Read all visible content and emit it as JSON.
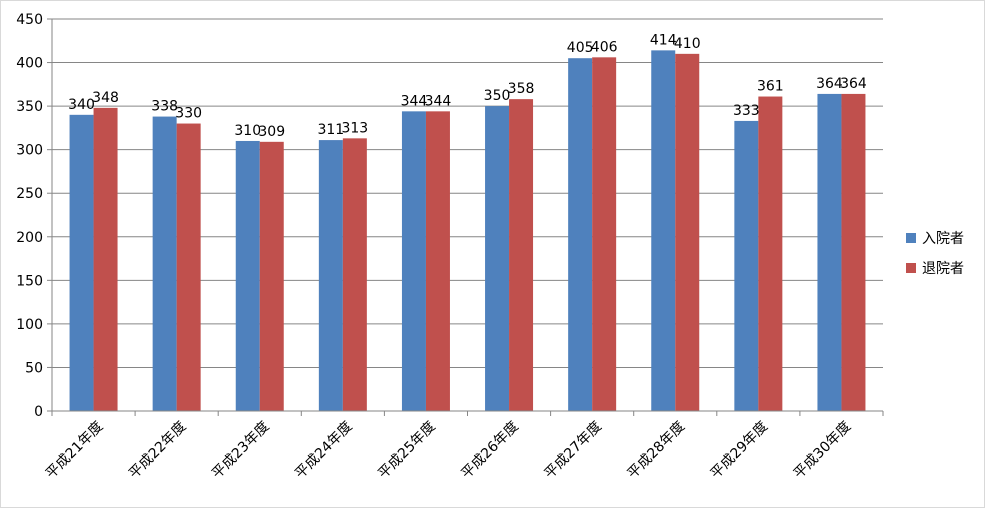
{
  "chart_data": {
    "type": "bar",
    "categories": [
      "平成21年度",
      "平成22年度",
      "平成23年度",
      "平成24年度",
      "平成25年度",
      "平成26年度",
      "平成27年度",
      "平成28年度",
      "平成29年度",
      "平成30年度"
    ],
    "series": [
      {
        "name": "入院者",
        "color": "#4F81BD",
        "values": [
          340,
          338,
          310,
          311,
          344,
          350,
          405,
          414,
          333,
          364
        ]
      },
      {
        "name": "退院者",
        "color": "#C0504D",
        "values": [
          348,
          330,
          309,
          313,
          344,
          358,
          406,
          410,
          361,
          364
        ]
      }
    ],
    "ylim": [
      0,
      450
    ],
    "yticks": [
      0,
      50,
      100,
      150,
      200,
      250,
      300,
      350,
      400,
      450
    ],
    "grid": true,
    "legend_position": "right",
    "data_labels": true
  }
}
